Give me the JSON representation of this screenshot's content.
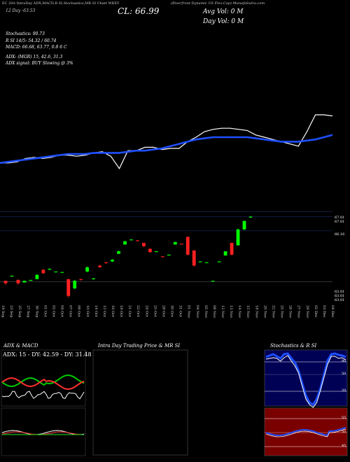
{
  "header": {
    "top_line": "EC 20A IntraDay ADX,MACD,B SI,Stochastics,MR SI Chart WKEY",
    "close_label": "CL: 66.99",
    "avg_vol": "Avg Vol: 0  M",
    "day_vol": "Day Vol: 0   M",
    "day_change": "12 Day   -63.53",
    "company": "(Riverfront Dynamic US Flex-Cap) MunafaSutra.com"
  },
  "stats": {
    "stochastics": "Stochastics: 90.73",
    "rsi": "R                 SI 14/5: 54.32  / 60.74",
    "macd": "MACD: 66.68, 63.77, 0.8              6   C",
    "adx": "ADX:                                        (MGR) 15, 42.6, 31.3",
    "adx_signal": "ADX  signal:                                   BUY Slowing @ 3%"
  },
  "price_labels": [
    "67.01",
    "67.01",
    "66.16",
    "63.01",
    "63.01",
    "63.01"
  ],
  "date_labels": [
    "19 Sep",
    "23 Sep",
    "25 Sep",
    "27 Sep",
    "30 Sep",
    "01 Oct",
    "02 Oct",
    "04 Oct",
    "07 Oct",
    "08 Oct",
    "10 Oct",
    "14 Oct",
    "15 Oct",
    "16 Oct",
    "18 Oct",
    "21 Oct",
    "22 Oct",
    "24 Oct",
    "25 Oct",
    "28 Oct",
    "30 Oct",
    "31 Oct",
    "01 Nov",
    "04 Nov",
    "05 Nov",
    "08 Nov",
    "12 Nov",
    "13 Nov",
    "14 Nov",
    "15 Nov",
    "18 Nov",
    "20 Nov",
    "22 Nov",
    "25 Nov",
    "26 Nov",
    "27 Nov",
    "29 Nov",
    "02 Dec",
    "03 Dec",
    "04 Dec"
  ],
  "panels": {
    "adx_title": "ADX  & MACD",
    "adx_inner": "ADX: 15 - DY: 42.59 - DY: 31.48",
    "intraday_title": "Intra  Day Trading Price  & MR                       SI",
    "stoch_title": "Stochastics & R           SI",
    "stoch_ticks": [
      "80",
      "50",
      "20"
    ],
    "rsi_ticks": [
      "55",
      "50",
      "45"
    ]
  },
  "colors": {
    "price_line": "#ffffff",
    "ma_line": "#1e4fff",
    "up": "#00ff00",
    "down": "#ff2020",
    "adx_green": "#00cc00",
    "adx_red": "#ff3030",
    "stoch_bg": "#000055",
    "rsi_bg": "#7a0000"
  },
  "chart_data": {
    "type": "candlestick",
    "title": "WKEY",
    "categories": [
      "19 Sep",
      "23 Sep",
      "25 Sep",
      "27 Sep",
      "30 Sep",
      "01 Oct",
      "02 Oct",
      "04 Oct",
      "07 Oct",
      "08 Oct",
      "10 Oct",
      "14 Oct",
      "15 Oct",
      "16 Oct",
      "18 Oct",
      "21 Oct",
      "22 Oct",
      "24 Oct",
      "25 Oct",
      "28 Oct",
      "30 Oct",
      "31 Oct",
      "01 Nov",
      "04 Nov",
      "05 Nov",
      "08 Nov",
      "12 Nov",
      "13 Nov",
      "14 Nov",
      "15 Nov",
      "18 Nov",
      "20 Nov",
      "22 Nov",
      "25 Nov",
      "26 Nov",
      "27 Nov",
      "29 Nov",
      "02 Dec",
      "03 Dec",
      "04 Dec"
    ],
    "candles": [
      {
        "o": 63.2,
        "c": 63.05,
        "h": 63.2,
        "l": 62.95
      },
      {
        "o": 63.5,
        "c": 63.5,
        "h": 63.5,
        "l": 63.5
      },
      {
        "o": 63.25,
        "c": 63.05,
        "h": 63.3,
        "l": 62.95
      },
      {
        "o": 63.1,
        "c": 63.2,
        "h": 63.2,
        "l": 63.1
      },
      {
        "o": 63.2,
        "c": 63.25,
        "h": 63.25,
        "l": 63.2
      },
      {
        "o": 63.3,
        "c": 63.55,
        "h": 63.6,
        "l": 63.3
      },
      {
        "o": 63.85,
        "c": 63.65,
        "h": 63.9,
        "l": 63.6
      },
      {
        "o": 63.85,
        "c": 63.9,
        "h": 63.95,
        "l": 63.85
      },
      {
        "o": 63.75,
        "c": 63.75,
        "h": 63.75,
        "l": 63.75
      },
      {
        "o": 63.72,
        "c": 63.72,
        "h": 63.72,
        "l": 63.72
      },
      {
        "o": 63.3,
        "c": 62.3,
        "h": 63.3,
        "l": 62.2
      },
      {
        "o": 62.75,
        "c": 63.2,
        "h": 63.25,
        "l": 62.7
      },
      {
        "o": 63.3,
        "c": 63.25,
        "h": 63.3,
        "l": 63.2
      },
      {
        "o": 63.75,
        "c": 64.0,
        "h": 64.05,
        "l": 63.7
      },
      {
        "o": 63.3,
        "c": 63.35,
        "h": 63.35,
        "l": 63.25
      },
      {
        "o": 64.1,
        "c": 64.0,
        "h": 64.15,
        "l": 64.0
      },
      {
        "o": 64.3,
        "c": 64.25,
        "h": 64.3,
        "l": 64.2
      },
      {
        "o": 64.35,
        "c": 64.45,
        "h": 64.5,
        "l": 64.3
      },
      {
        "o": 64.8,
        "c": 64.95,
        "h": 65.0,
        "l": 64.8
      },
      {
        "o": 65.35,
        "c": 65.55,
        "h": 65.55,
        "l": 65.35
      },
      {
        "o": 65.65,
        "c": 65.65,
        "h": 65.65,
        "l": 65.65
      },
      {
        "o": 65.6,
        "c": 65.55,
        "h": 65.6,
        "l": 65.55
      },
      {
        "o": 65.45,
        "c": 65.25,
        "h": 65.45,
        "l": 65.2
      },
      {
        "o": 65.1,
        "c": 64.9,
        "h": 65.1,
        "l": 64.85
      },
      {
        "o": 64.95,
        "c": 64.95,
        "h": 64.95,
        "l": 64.95
      },
      {
        "o": 64.65,
        "c": 64.6,
        "h": 64.65,
        "l": 64.6
      },
      {
        "o": 64.7,
        "c": 64.75,
        "h": 64.75,
        "l": 64.7
      },
      {
        "o": 65.35,
        "c": 65.5,
        "h": 65.5,
        "l": 65.35
      },
      {
        "o": 65.4,
        "c": 65.35,
        "h": 65.4,
        "l": 65.35
      },
      {
        "o": 65.8,
        "c": 64.75,
        "h": 65.85,
        "l": 64.7
      },
      {
        "o": 65.0,
        "c": 64.1,
        "h": 65.0,
        "l": 64.05
      },
      {
        "o": 64.35,
        "c": 64.35,
        "h": 64.35,
        "l": 64.35
      },
      {
        "o": 64.3,
        "c": 64.3,
        "h": 64.3,
        "l": 64.3
      },
      {
        "o": 63.2,
        "c": 63.2,
        "h": 63.2,
        "l": 63.2
      },
      {
        "o": 64.3,
        "c": 64.35,
        "h": 64.35,
        "l": 64.3
      },
      {
        "o": 64.7,
        "c": 64.95,
        "h": 64.95,
        "l": 64.7
      },
      {
        "o": 65.45,
        "c": 64.75,
        "h": 65.45,
        "l": 64.7
      },
      {
        "o": 65.3,
        "c": 66.25,
        "h": 66.3,
        "l": 65.3
      },
      {
        "o": 66.25,
        "c": 66.75,
        "h": 66.75,
        "l": 66.2
      },
      {
        "o": 66.95,
        "c": 67.0,
        "h": 67.05,
        "l": 66.95
      }
    ],
    "close_line": [
      0.83,
      0.83,
      0.82,
      0.79,
      0.78,
      0.79,
      0.78,
      0.76,
      0.76,
      0.77,
      0.76,
      0.74,
      0.73,
      0.77,
      0.88,
      0.72,
      0.72,
      0.69,
      0.69,
      0.71,
      0.7,
      0.7,
      0.64,
      0.6,
      0.55,
      0.53,
      0.52,
      0.52,
      0.53,
      0.54,
      0.58,
      0.6,
      0.62,
      0.64,
      0.66,
      0.68,
      0.55,
      0.4,
      0.4,
      0.41
    ],
    "ma_line": [
      0.83,
      0.82,
      0.81,
      0.8,
      0.79,
      0.78,
      0.77,
      0.76,
      0.75,
      0.75,
      0.75,
      0.74,
      0.74,
      0.74,
      0.74,
      0.73,
      0.72,
      0.72,
      0.71,
      0.7,
      0.68,
      0.66,
      0.64,
      0.62,
      0.61,
      0.6,
      0.6,
      0.6,
      0.6,
      0.6,
      0.61,
      0.62,
      0.63,
      0.64,
      0.64,
      0.64,
      0.63,
      0.62,
      0.6,
      0.58
    ]
  }
}
